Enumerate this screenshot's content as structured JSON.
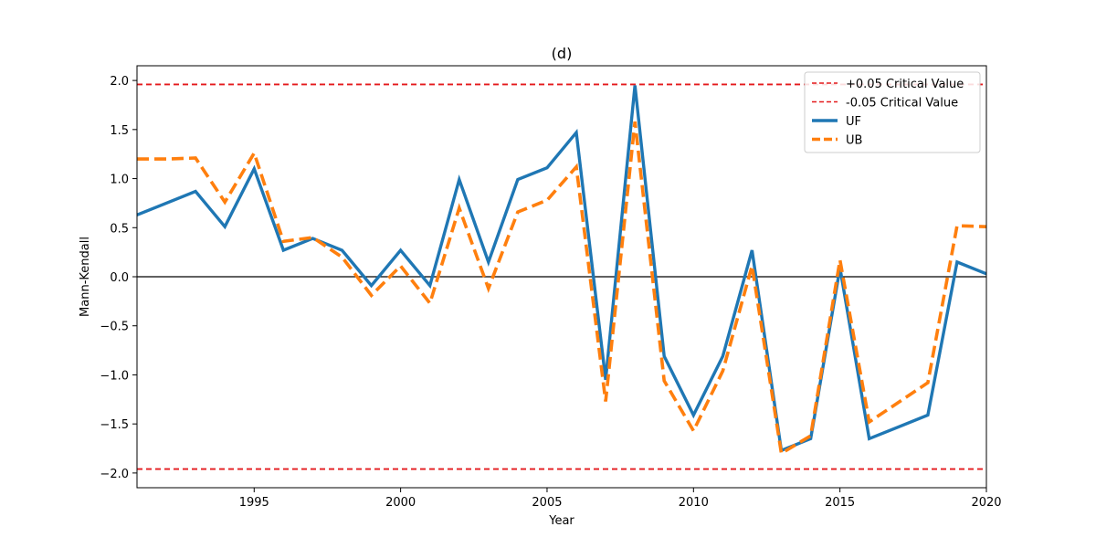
{
  "chart_data": {
    "type": "line",
    "title": "(d)",
    "xlabel": "Year",
    "ylabel": "Mann-Kendall",
    "xlim": [
      1991,
      2020
    ],
    "ylim": [
      -2.15,
      2.15
    ],
    "grid": false,
    "legend_position": "top-right",
    "x_ticks": [
      1995,
      2000,
      2005,
      2010,
      2015,
      2020
    ],
    "x_tick_labels": [
      "1995",
      "2000",
      "2005",
      "2010",
      "2015",
      "2020"
    ],
    "y_ticks": [
      2.0,
      1.5,
      1.0,
      0.5,
      0.0,
      -0.5,
      -1.0,
      -1.5,
      -2.0
    ],
    "y_tick_labels": [
      "2.0",
      "1.5",
      "1.0",
      "0.5",
      "0.0",
      "−0.5",
      "−1.0",
      "−1.5",
      "−2.0"
    ],
    "reference_lines": [
      {
        "name": "+0.05 Critical Value",
        "y": 1.96,
        "color": "#e41a1c",
        "style": "dashed"
      },
      {
        "name": "-0.05 Critical Value",
        "y": -1.96,
        "color": "#e41a1c",
        "style": "dashed"
      },
      {
        "name": "",
        "y": 0.0,
        "color": "#000000",
        "style": "solid"
      }
    ],
    "x": [
      1991,
      1992,
      1993,
      1994,
      1995,
      1996,
      1997,
      1998,
      1999,
      2000,
      2001,
      2002,
      2003,
      2004,
      2005,
      2006,
      2007,
      2008,
      2009,
      2010,
      2011,
      2012,
      2013,
      2014,
      2015,
      2016,
      2017,
      2018,
      2019,
      2020
    ],
    "series": [
      {
        "name": "UF",
        "color": "#1f77b4",
        "style": "solid",
        "values": [
          0.63,
          0.75,
          0.87,
          0.51,
          1.1,
          0.27,
          0.39,
          0.27,
          -0.09,
          0.27,
          -0.09,
          0.99,
          0.15,
          0.99,
          1.11,
          1.47,
          -1.05,
          1.95,
          -0.81,
          -1.41,
          -0.81,
          0.27,
          -1.77,
          -1.65,
          0.09,
          -1.65,
          -1.53,
          -1.41,
          0.15,
          0.03
        ]
      },
      {
        "name": "UB",
        "color": "#ff7f0e",
        "style": "dashed",
        "values": [
          1.2,
          1.2,
          1.21,
          0.76,
          1.26,
          0.36,
          0.4,
          0.2,
          -0.19,
          0.11,
          -0.27,
          0.7,
          -0.12,
          0.66,
          0.78,
          1.12,
          -1.27,
          1.58,
          -1.06,
          -1.57,
          -0.96,
          0.11,
          -1.8,
          -1.62,
          0.17,
          -1.48,
          -1.28,
          -1.08,
          0.52,
          0.51
        ]
      }
    ]
  }
}
